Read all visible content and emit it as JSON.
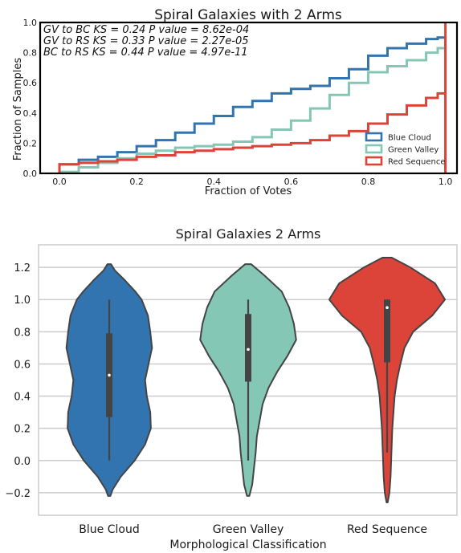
{
  "colors": {
    "blue_cloud": "#3274b0",
    "green_valley": "#84c7b5",
    "red_sequence": "#dc4439",
    "violin_stroke": "#444444",
    "grid": "#cccccc"
  },
  "chart_data": [
    {
      "type": "line",
      "subtype": "cumulative step histogram",
      "title": "Spiral Galaxies with 2 Arms",
      "xlabel": "Fraction of Votes",
      "ylabel": "Fraction of Samples",
      "xlim": [
        -0.05,
        1.03
      ],
      "ylim": [
        0.0,
        1.0
      ],
      "x_ticks": [
        "0.0",
        "0.2",
        "0.4",
        "0.6",
        "0.8",
        "1.0"
      ],
      "y_ticks": [
        "0.0",
        "0.2",
        "0.4",
        "0.6",
        "0.8",
        "1.0"
      ],
      "grid": false,
      "legend_position": "bottom-right",
      "annotations": [
        "GV to BC KS = 0.24 P value = 8.62e-04",
        "GV to RS KS = 0.33 P value = 2.27e-05",
        "BC to RS KS = 0.44 P value = 4.97e-11"
      ],
      "series": [
        {
          "name": "Blue Cloud",
          "color": "#3274b0",
          "x": [
            0.0,
            0.05,
            0.1,
            0.15,
            0.2,
            0.25,
            0.3,
            0.35,
            0.4,
            0.45,
            0.5,
            0.55,
            0.6,
            0.65,
            0.7,
            0.75,
            0.8,
            0.85,
            0.9,
            0.95,
            0.98,
            1.0
          ],
          "y": [
            0.06,
            0.09,
            0.11,
            0.14,
            0.18,
            0.22,
            0.27,
            0.33,
            0.38,
            0.44,
            0.48,
            0.53,
            0.56,
            0.58,
            0.63,
            0.69,
            0.78,
            0.83,
            0.86,
            0.89,
            0.9,
            0.9
          ]
        },
        {
          "name": "Green Valley",
          "color": "#84c7b5",
          "x": [
            0.0,
            0.05,
            0.1,
            0.15,
            0.2,
            0.25,
            0.3,
            0.35,
            0.4,
            0.45,
            0.5,
            0.55,
            0.6,
            0.65,
            0.7,
            0.75,
            0.8,
            0.85,
            0.9,
            0.95,
            0.98,
            1.0
          ],
          "y": [
            0.01,
            0.04,
            0.07,
            0.1,
            0.13,
            0.15,
            0.17,
            0.18,
            0.19,
            0.21,
            0.24,
            0.29,
            0.35,
            0.43,
            0.52,
            0.6,
            0.67,
            0.71,
            0.75,
            0.8,
            0.83,
            0.83
          ]
        },
        {
          "name": "Red Sequence",
          "color": "#dc4439",
          "x": [
            0.0,
            0.05,
            0.1,
            0.15,
            0.2,
            0.25,
            0.3,
            0.35,
            0.4,
            0.45,
            0.5,
            0.55,
            0.6,
            0.65,
            0.7,
            0.75,
            0.8,
            0.85,
            0.9,
            0.95,
            0.98,
            1.0
          ],
          "y": [
            0.06,
            0.07,
            0.08,
            0.09,
            0.11,
            0.12,
            0.14,
            0.15,
            0.16,
            0.17,
            0.18,
            0.19,
            0.2,
            0.22,
            0.25,
            0.28,
            0.33,
            0.39,
            0.45,
            0.5,
            0.53,
            1.0
          ]
        }
      ]
    },
    {
      "type": "violin",
      "title": "Spiral Galaxies 2 Arms",
      "xlabel": "Morphological Classification",
      "ylabel": "",
      "ylim": [
        -0.34,
        1.34
      ],
      "y_ticks": [
        "1.2",
        "1.0",
        "0.8",
        "0.6",
        "0.4",
        "0.2",
        "0.0",
        "−0.2"
      ],
      "y_tick_values": [
        1.2,
        1.0,
        0.8,
        0.6,
        0.4,
        0.2,
        0.0,
        -0.2
      ],
      "grid": true,
      "categories": [
        "Blue Cloud",
        "Green Valley",
        "Red Sequence"
      ],
      "series": [
        {
          "name": "Blue Cloud",
          "color": "#3274b0",
          "min": 0.0,
          "q1": 0.27,
          "median": 0.53,
          "q3": 0.79,
          "max": 1.0,
          "density": [
            [
              1.22,
              0.03
            ],
            [
              1.18,
              0.1
            ],
            [
              1.12,
              0.27
            ],
            [
              1.05,
              0.45
            ],
            [
              1.0,
              0.56
            ],
            [
              0.9,
              0.67
            ],
            [
              0.8,
              0.71
            ],
            [
              0.7,
              0.74
            ],
            [
              0.6,
              0.68
            ],
            [
              0.5,
              0.62
            ],
            [
              0.4,
              0.65
            ],
            [
              0.3,
              0.71
            ],
            [
              0.2,
              0.72
            ],
            [
              0.1,
              0.62
            ],
            [
              0.0,
              0.44
            ],
            [
              -0.1,
              0.2
            ],
            [
              -0.18,
              0.06
            ],
            [
              -0.22,
              0.02
            ]
          ]
        },
        {
          "name": "Green Valley",
          "color": "#84c7b5",
          "min": 0.0,
          "q1": 0.49,
          "median": 0.69,
          "q3": 0.91,
          "max": 1.0,
          "density": [
            [
              1.22,
              0.05
            ],
            [
              1.15,
              0.28
            ],
            [
              1.05,
              0.58
            ],
            [
              0.95,
              0.71
            ],
            [
              0.85,
              0.79
            ],
            [
              0.75,
              0.83
            ],
            [
              0.65,
              0.68
            ],
            [
              0.55,
              0.5
            ],
            [
              0.45,
              0.35
            ],
            [
              0.35,
              0.25
            ],
            [
              0.25,
              0.2
            ],
            [
              0.15,
              0.15
            ],
            [
              0.05,
              0.13
            ],
            [
              -0.05,
              0.1
            ],
            [
              -0.15,
              0.07
            ],
            [
              -0.22,
              0.02
            ]
          ]
        },
        {
          "name": "Red Sequence",
          "color": "#dc4439",
          "min": 0.05,
          "q1": 0.61,
          "median": 0.95,
          "q3": 1.0,
          "max": 1.0,
          "density": [
            [
              1.26,
              0.08
            ],
            [
              1.2,
              0.4
            ],
            [
              1.1,
              0.83
            ],
            [
              1.0,
              1.0
            ],
            [
              0.9,
              0.78
            ],
            [
              0.8,
              0.45
            ],
            [
              0.7,
              0.3
            ],
            [
              0.6,
              0.23
            ],
            [
              0.5,
              0.17
            ],
            [
              0.4,
              0.13
            ],
            [
              0.3,
              0.11
            ],
            [
              0.2,
              0.09
            ],
            [
              0.1,
              0.08
            ],
            [
              0.0,
              0.07
            ],
            [
              -0.1,
              0.06
            ],
            [
              -0.2,
              0.04
            ],
            [
              -0.26,
              0.01
            ]
          ]
        }
      ]
    }
  ]
}
